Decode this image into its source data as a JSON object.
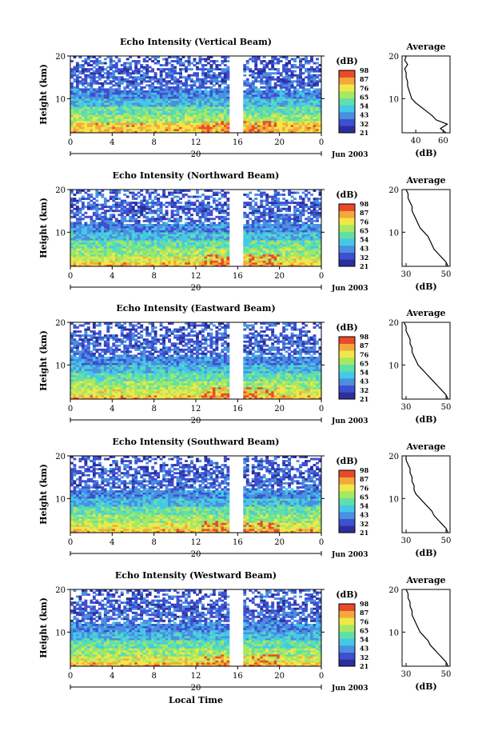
{
  "figure": {
    "xlabel": "Local Time",
    "date_label": "Jun 2003",
    "day_label": "20",
    "time_ticks": [
      "0",
      "4",
      "8",
      "12",
      "16",
      "20",
      "0"
    ],
    "height_ticks": [
      "20",
      "10"
    ],
    "ylabel": "Height (km)",
    "colorbar_unit": "(dB)",
    "colorbar_levels": [
      "21",
      "32",
      "43",
      "54",
      "65",
      "76",
      "87",
      "98"
    ],
    "colormap": [
      "#2b2f9e",
      "#3f4fd0",
      "#4a8fe0",
      "#45c8e8",
      "#5fe0a8",
      "#a8e860",
      "#f0e84a",
      "#f5a83a",
      "#ea4a2a"
    ],
    "average_title": "Average",
    "average_xlabel": "(dB)"
  },
  "chart_data": [
    {
      "type": "heatmap",
      "title": "Echo Intensity (Vertical Beam)",
      "xlabel": "",
      "ylabel": "Height (km)",
      "xlim_hours": [
        0,
        24
      ],
      "ylim_km": [
        2,
        20
      ],
      "data_gap_hours": [
        15.2,
        16.4
      ],
      "colorbar_range": [
        21,
        98
      ],
      "average_profile": {
        "title": "Average",
        "xlabel": "(dB)",
        "xticks": [
          "40",
          "60"
        ],
        "yticks": [
          "20",
          "10"
        ],
        "xlim": [
          30,
          65
        ],
        "height_km": [
          2,
          3,
          4,
          5,
          6,
          7,
          8,
          9,
          10,
          11,
          12,
          13,
          14,
          15,
          16,
          17,
          18,
          19,
          20
        ],
        "value_db": [
          62,
          58,
          63,
          55,
          52,
          48,
          44,
          40,
          37,
          36,
          35,
          34,
          34,
          33,
          33,
          32,
          34,
          32,
          33
        ]
      }
    },
    {
      "type": "heatmap",
      "title": "Echo Intensity (Northward Beam)",
      "xlabel": "",
      "ylabel": "Height (km)",
      "xlim_hours": [
        0,
        24
      ],
      "ylim_km": [
        2,
        20
      ],
      "data_gap_hours": [
        15.2,
        16.4
      ],
      "colorbar_range": [
        21,
        98
      ],
      "average_profile": {
        "title": "Average",
        "xlabel": "(dB)",
        "xticks": [
          "30",
          "50"
        ],
        "yticks": [
          "20",
          "10"
        ],
        "xlim": [
          28,
          52
        ],
        "height_km": [
          2,
          3,
          4,
          5,
          6,
          7,
          8,
          9,
          10,
          11,
          12,
          13,
          14,
          15,
          16,
          17,
          18,
          19,
          20
        ],
        "value_db": [
          51,
          50,
          48,
          46,
          44,
          43,
          42,
          41,
          39,
          37,
          36,
          35,
          34,
          33,
          33,
          32,
          31,
          31,
          30
        ]
      }
    },
    {
      "type": "heatmap",
      "title": "Echo Intensity (Eastward Beam)",
      "xlabel": "",
      "ylabel": "Height (km)",
      "xlim_hours": [
        0,
        24
      ],
      "ylim_km": [
        2,
        20
      ],
      "data_gap_hours": [
        15.2,
        16.4
      ],
      "colorbar_range": [
        21,
        98
      ],
      "average_profile": {
        "title": "Average",
        "xlabel": "(dB)",
        "xticks": [
          "30",
          "50"
        ],
        "yticks": [
          "20",
          "10"
        ],
        "xlim": [
          28,
          52
        ],
        "height_km": [
          2,
          3,
          4,
          5,
          6,
          7,
          8,
          9,
          10,
          11,
          12,
          13,
          14,
          15,
          16,
          17,
          18,
          19,
          20
        ],
        "value_db": [
          51,
          50,
          48,
          46,
          44,
          42,
          40,
          38,
          36,
          35,
          34,
          33,
          33,
          32,
          32,
          31,
          30,
          30,
          29
        ]
      }
    },
    {
      "type": "heatmap",
      "title": "Echo Intensity (Southward Beam)",
      "xlabel": "",
      "ylabel": "Height (km)",
      "xlim_hours": [
        0,
        24
      ],
      "ylim_km": [
        2,
        20
      ],
      "data_gap_hours": [
        15.2,
        16.4
      ],
      "colorbar_range": [
        21,
        98
      ],
      "average_profile": {
        "title": "Average",
        "xlabel": "(dB)",
        "xticks": [
          "30",
          "50"
        ],
        "yticks": [
          "20",
          "10"
        ],
        "xlim": [
          28,
          52
        ],
        "height_km": [
          2,
          3,
          4,
          5,
          6,
          7,
          8,
          9,
          10,
          11,
          12,
          13,
          14,
          15,
          16,
          17,
          18,
          19,
          20
        ],
        "value_db": [
          51,
          50,
          48,
          46,
          44,
          43,
          41,
          39,
          37,
          35,
          34,
          34,
          33,
          33,
          32,
          32,
          31,
          30,
          30
        ]
      }
    },
    {
      "type": "heatmap",
      "title": "Echo Intensity (Westward Beam)",
      "xlabel": "Local Time",
      "ylabel": "Height (km)",
      "xlim_hours": [
        0,
        24
      ],
      "ylim_km": [
        2,
        20
      ],
      "data_gap_hours": [
        15.2,
        16.4
      ],
      "colorbar_range": [
        21,
        98
      ],
      "average_profile": {
        "title": "Average",
        "xlabel": "(dB)",
        "xticks": [
          "30",
          "50"
        ],
        "yticks": [
          "20",
          "10"
        ],
        "xlim": [
          28,
          52
        ],
        "height_km": [
          2,
          3,
          4,
          5,
          6,
          7,
          8,
          9,
          10,
          11,
          12,
          13,
          14,
          15,
          16,
          17,
          18,
          19,
          20
        ],
        "value_db": [
          51,
          50,
          48,
          46,
          44,
          42,
          41,
          39,
          37,
          36,
          35,
          34,
          33,
          33,
          32,
          32,
          31,
          31,
          30
        ]
      }
    }
  ]
}
